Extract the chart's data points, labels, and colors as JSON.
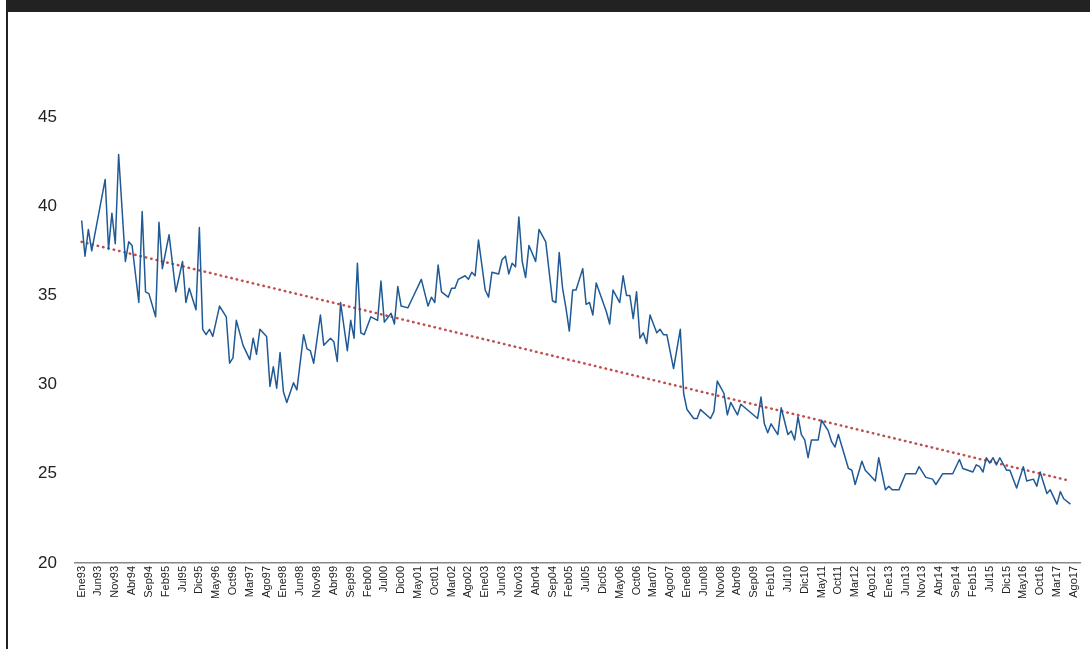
{
  "chart_data": {
    "type": "line",
    "xlim": [
      "1992-11",
      "2017-10"
    ],
    "ylim": [
      20,
      45
    ],
    "yticks": [
      20,
      25,
      30,
      35,
      40,
      45
    ],
    "grid": false,
    "legend": false,
    "marker": "none",
    "xticks": [
      {
        "value": "1993-01",
        "label": "Ene93"
      },
      {
        "value": "1993-06",
        "label": "Jun93"
      },
      {
        "value": "1993-11",
        "label": "Nov93"
      },
      {
        "value": "1994-04",
        "label": "Abr94"
      },
      {
        "value": "1994-09",
        "label": "Sep94"
      },
      {
        "value": "1995-02",
        "label": "Feb95"
      },
      {
        "value": "1995-07",
        "label": "Jul95"
      },
      {
        "value": "1995-12",
        "label": "Dic95"
      },
      {
        "value": "1996-05",
        "label": "May96"
      },
      {
        "value": "1996-10",
        "label": "Oct96"
      },
      {
        "value": "1997-03",
        "label": "Mar97"
      },
      {
        "value": "1997-08",
        "label": "Ago97"
      },
      {
        "value": "1998-01",
        "label": "Ene98"
      },
      {
        "value": "1998-06",
        "label": "Jun98"
      },
      {
        "value": "1998-11",
        "label": "Nov98"
      },
      {
        "value": "1999-04",
        "label": "Abr99"
      },
      {
        "value": "1999-09",
        "label": "Sep99"
      },
      {
        "value": "2000-02",
        "label": "Feb00"
      },
      {
        "value": "2000-07",
        "label": "Jul00"
      },
      {
        "value": "2000-12",
        "label": "Dic00"
      },
      {
        "value": "2001-05",
        "label": "May01"
      },
      {
        "value": "2001-10",
        "label": "Oct01"
      },
      {
        "value": "2002-03",
        "label": "Mar02"
      },
      {
        "value": "2002-08",
        "label": "Ago02"
      },
      {
        "value": "2003-01",
        "label": "Ene03"
      },
      {
        "value": "2003-06",
        "label": "Jun03"
      },
      {
        "value": "2003-11",
        "label": "Nov03"
      },
      {
        "value": "2004-04",
        "label": "Abr04"
      },
      {
        "value": "2004-09",
        "label": "Sep04"
      },
      {
        "value": "2005-02",
        "label": "Feb05"
      },
      {
        "value": "2005-07",
        "label": "Jul05"
      },
      {
        "value": "2005-12",
        "label": "Dic05"
      },
      {
        "value": "2006-05",
        "label": "May06"
      },
      {
        "value": "2006-10",
        "label": "Oct06"
      },
      {
        "value": "2007-03",
        "label": "Mar07"
      },
      {
        "value": "2007-08",
        "label": "Ago07"
      },
      {
        "value": "2008-01",
        "label": "Ene08"
      },
      {
        "value": "2008-06",
        "label": "Jun08"
      },
      {
        "value": "2008-11",
        "label": "Nov08"
      },
      {
        "value": "2009-04",
        "label": "Abr09"
      },
      {
        "value": "2009-09",
        "label": "Sep09"
      },
      {
        "value": "2010-02",
        "label": "Feb10"
      },
      {
        "value": "2010-07",
        "label": "Jul10"
      },
      {
        "value": "2010-12",
        "label": "Dic10"
      },
      {
        "value": "2011-05",
        "label": "May11"
      },
      {
        "value": "2011-10",
        "label": "Oct11"
      },
      {
        "value": "2012-03",
        "label": "Mar12"
      },
      {
        "value": "2012-08",
        "label": "Ago12"
      },
      {
        "value": "2013-01",
        "label": "Ene13"
      },
      {
        "value": "2013-06",
        "label": "Jun13"
      },
      {
        "value": "2013-11",
        "label": "Nov13"
      },
      {
        "value": "2014-04",
        "label": "Abr14"
      },
      {
        "value": "2014-09",
        "label": "Sep14"
      },
      {
        "value": "2015-02",
        "label": "Feb15"
      },
      {
        "value": "2015-07",
        "label": "Jul15"
      },
      {
        "value": "2015-12",
        "label": "Dic15"
      },
      {
        "value": "2016-05",
        "label": "May16"
      },
      {
        "value": "2016-10",
        "label": "Oct16"
      },
      {
        "value": "2017-03",
        "label": "Mar17"
      },
      {
        "value": "2017-08",
        "label": "Ago17"
      }
    ],
    "series": [
      {
        "color": "#1f5a96",
        "line_style": "solid",
        "x": [
          "1993-01",
          "1993-02",
          "1993-03",
          "1993-04",
          "1993-08",
          "1993-09",
          "1993-10",
          "1993-11",
          "1993-12",
          "1994-02",
          "1994-03",
          "1994-04",
          "1994-06",
          "1994-07",
          "1994-08",
          "1994-09",
          "1994-11",
          "1994-12",
          "1995-01",
          "1995-03",
          "1995-05",
          "1995-07",
          "1995-08",
          "1995-09",
          "1995-11",
          "1995-12",
          "1996-01",
          "1996-02",
          "1996-03",
          "1996-04",
          "1996-06",
          "1996-08",
          "1996-09",
          "1996-10",
          "1996-11",
          "1997-01",
          "1997-03",
          "1997-04",
          "1997-05",
          "1997-06",
          "1997-08",
          "1997-09",
          "1997-10",
          "1997-11",
          "1997-12",
          "1998-01",
          "1998-02",
          "1998-04",
          "1998-05",
          "1998-07",
          "1998-08",
          "1998-09",
          "1998-10",
          "1998-12",
          "1999-01",
          "1999-03",
          "1999-04",
          "1999-05",
          "1999-06",
          "1999-08",
          "1999-09",
          "1999-10",
          "1999-11",
          "1999-12",
          "2000-01",
          "2000-03",
          "2000-05",
          "2000-06",
          "2000-07",
          "2000-09",
          "2000-10",
          "2000-11",
          "2000-12",
          "2001-02",
          "2001-03",
          "2001-06",
          "2001-08",
          "2001-09",
          "2001-10",
          "2001-11",
          "2001-12",
          "2002-02",
          "2002-03",
          "2002-04",
          "2002-05",
          "2002-07",
          "2002-08",
          "2002-09",
          "2002-10",
          "2002-11",
          "2003-01",
          "2003-02",
          "2003-03",
          "2003-05",
          "2003-06",
          "2003-07",
          "2003-08",
          "2003-09",
          "2003-10",
          "2003-11",
          "2003-12",
          "2004-01",
          "2004-02",
          "2004-04",
          "2004-05",
          "2004-07",
          "2004-09",
          "2004-10",
          "2004-11",
          "2004-12",
          "2005-01",
          "2005-02",
          "2005-03",
          "2005-04",
          "2005-06",
          "2005-07",
          "2005-08",
          "2005-09",
          "2005-10",
          "2006-01",
          "2006-02",
          "2006-03",
          "2006-05",
          "2006-06",
          "2006-07",
          "2006-08",
          "2006-09",
          "2006-10",
          "2006-11",
          "2006-12",
          "2007-01",
          "2007-02",
          "2007-04",
          "2007-05",
          "2007-06",
          "2007-07",
          "2007-09",
          "2007-11",
          "2007-12",
          "2008-01",
          "2008-03",
          "2008-04",
          "2008-05",
          "2008-08",
          "2008-09",
          "2008-10",
          "2008-12",
          "2009-01",
          "2009-02",
          "2009-04",
          "2009-05",
          "2009-10",
          "2009-11",
          "2009-12",
          "2010-01",
          "2010-02",
          "2010-04",
          "2010-05",
          "2010-07",
          "2010-08",
          "2010-09",
          "2010-10",
          "2010-11",
          "2010-12",
          "2011-01",
          "2011-02",
          "2011-04",
          "2011-05",
          "2011-07",
          "2011-08",
          "2011-09",
          "2011-10",
          "2012-01",
          "2012-02",
          "2012-03",
          "2012-05",
          "2012-06",
          "2012-07",
          "2012-09",
          "2012-10",
          "2012-12",
          "2013-01",
          "2013-02",
          "2013-04",
          "2013-06",
          "2013-09",
          "2013-10",
          "2013-12",
          "2014-02",
          "2014-03",
          "2014-05",
          "2014-08",
          "2014-10",
          "2014-11",
          "2015-02",
          "2015-03",
          "2015-04",
          "2015-05",
          "2015-06",
          "2015-07",
          "2015-08",
          "2015-09",
          "2015-10",
          "2015-12",
          "2016-01",
          "2016-03",
          "2016-05",
          "2016-06",
          "2016-08",
          "2016-09",
          "2016-10",
          "2016-11",
          "2016-12",
          "2017-01",
          "2017-03",
          "2017-04",
          "2017-05",
          "2017-07"
        ],
        "values": [
          39.2,
          37.2,
          38.7,
          37.5,
          41.5,
          37.6,
          39.6,
          37.9,
          42.9,
          36.9,
          38.0,
          37.8,
          34.6,
          39.7,
          35.2,
          35.1,
          33.8,
          39.1,
          36.5,
          38.4,
          35.2,
          36.9,
          34.6,
          35.4,
          34.2,
          38.8,
          33.1,
          32.8,
          33.1,
          32.7,
          34.4,
          33.8,
          31.2,
          31.5,
          33.6,
          32.2,
          31.4,
          32.6,
          31.7,
          33.1,
          32.7,
          29.9,
          31.0,
          29.8,
          31.8,
          29.6,
          29.0,
          30.1,
          29.7,
          32.8,
          32.0,
          31.9,
          31.2,
          33.9,
          32.2,
          32.6,
          32.4,
          31.3,
          34.6,
          31.9,
          33.6,
          32.6,
          36.8,
          32.9,
          32.8,
          33.8,
          33.6,
          35.8,
          33.5,
          34.0,
          33.4,
          35.5,
          34.4,
          34.3,
          34.7,
          35.9,
          34.4,
          34.9,
          34.6,
          36.7,
          35.2,
          34.9,
          35.4,
          35.4,
          35.9,
          36.1,
          35.9,
          36.3,
          36.1,
          38.1,
          35.3,
          34.9,
          36.3,
          36.2,
          37.0,
          37.2,
          36.2,
          36.8,
          36.6,
          39.4,
          36.9,
          36.0,
          37.8,
          36.9,
          38.7,
          38.0,
          34.7,
          34.6,
          37.4,
          35.4,
          34.3,
          33.0,
          35.3,
          35.3,
          36.5,
          34.5,
          34.6,
          33.9,
          35.7,
          34.1,
          33.4,
          35.3,
          34.6,
          36.1,
          35.0,
          35.0,
          33.7,
          35.2,
          32.6,
          32.9,
          32.3,
          33.9,
          32.9,
          33.1,
          32.8,
          32.8,
          30.9,
          33.1,
          29.5,
          28.6,
          28.1,
          28.1,
          28.6,
          28.1,
          28.5,
          30.2,
          29.5,
          28.3,
          29.0,
          28.3,
          28.9,
          28.1,
          29.3,
          27.8,
          27.3,
          27.8,
          27.2,
          28.7,
          27.2,
          27.4,
          26.9,
          28.2,
          27.2,
          26.9,
          25.9,
          26.9,
          26.9,
          28.0,
          27.4,
          26.8,
          26.5,
          27.2,
          25.3,
          25.2,
          24.4,
          25.7,
          25.2,
          25.0,
          24.6,
          25.9,
          24.1,
          24.3,
          24.1,
          24.1,
          25.0,
          25.0,
          25.4,
          24.8,
          24.7,
          24.4,
          25.0,
          25.0,
          25.8,
          25.3,
          25.1,
          25.5,
          25.4,
          25.1,
          25.9,
          25.6,
          25.9,
          25.5,
          25.9,
          25.2,
          25.2,
          24.2,
          25.4,
          24.6,
          24.7,
          24.3,
          25.1,
          24.5,
          23.9,
          24.1,
          23.3,
          24.0,
          23.6,
          23.3
        ]
      },
      {
        "type": "line",
        "color": "#c0504d",
        "line_style": "dotted",
        "x": [
          "1993-01",
          "2017-07"
        ],
        "values": [
          38.0,
          24.6
        ]
      }
    ]
  }
}
